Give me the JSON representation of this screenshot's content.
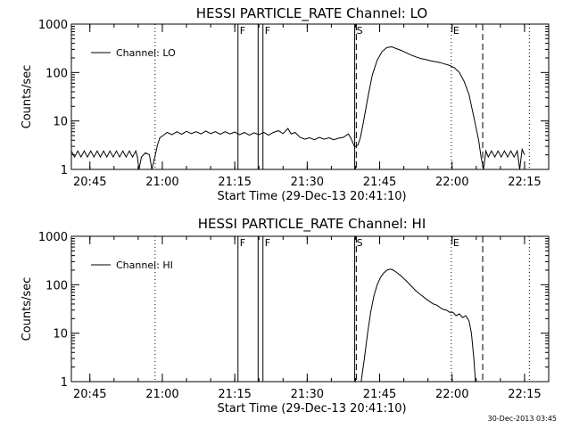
{
  "footer": {
    "timestamp": "30-Dec-2013 03:45"
  },
  "chart_data": [
    {
      "type": "line",
      "title": "HESSI PARTICLE_RATE Channel: LO",
      "xlabel": "Start Time (29-Dec-13 20:41:10)",
      "ylabel": "Counts/sec",
      "y_scale": "log",
      "xlim": [
        "20:41:10",
        "22:20:00"
      ],
      "ylim": [
        1,
        1000
      ],
      "x_ticks": [
        "20:45",
        "21:00",
        "21:15",
        "21:30",
        "21:45",
        "22:00",
        "22:15"
      ],
      "y_ticks": [
        "1",
        "10",
        "100",
        "1000"
      ],
      "legend": {
        "position": "top-left",
        "entries": [
          "Channel: LO"
        ]
      },
      "markers": [
        {
          "time": "20:58:30",
          "style": "dotted",
          "label": ""
        },
        {
          "time": "21:15:40",
          "style": "solid",
          "label": "F"
        },
        {
          "time": "21:19:50",
          "style": "solid",
          "label": ""
        },
        {
          "time": "21:20:50",
          "style": "solid",
          "label": "F"
        },
        {
          "time": "21:39:50",
          "style": "solid",
          "label": "S"
        },
        {
          "time": "21:40:10",
          "style": "dashed",
          "label": ""
        },
        {
          "time": "21:59:50",
          "style": "dotted",
          "label": "E"
        },
        {
          "time": "22:06:20",
          "style": "dashed",
          "label": ""
        },
        {
          "time": "22:16:00",
          "style": "dotted",
          "label": ""
        }
      ],
      "series": [
        {
          "name": "Channel: LO",
          "points": [
            [
              "20:41:10",
              2.4
            ],
            [
              "20:41:50",
              1.8
            ],
            [
              "20:42:30",
              2.4
            ],
            [
              "20:43:10",
              1.8
            ],
            [
              "20:43:50",
              2.4
            ],
            [
              "20:44:30",
              1.8
            ],
            [
              "20:45:10",
              2.4
            ],
            [
              "20:45:50",
              1.8
            ],
            [
              "20:46:30",
              2.4
            ],
            [
              "20:47:10",
              1.8
            ],
            [
              "20:47:50",
              2.4
            ],
            [
              "20:48:30",
              1.8
            ],
            [
              "20:49:10",
              2.4
            ],
            [
              "20:49:50",
              1.8
            ],
            [
              "20:50:30",
              2.4
            ],
            [
              "20:51:10",
              1.8
            ],
            [
              "20:51:50",
              2.4
            ],
            [
              "20:52:30",
              1.8
            ],
            [
              "20:53:10",
              2.4
            ],
            [
              "20:53:50",
              1.8
            ],
            [
              "20:54:30",
              2.4
            ],
            [
              "20:54:50",
              1.8
            ],
            [
              "20:55:10",
              1.0
            ],
            [
              "20:55:40",
              1.8
            ],
            [
              "20:56:30",
              2.2
            ],
            [
              "20:57:20",
              2.0
            ],
            [
              "20:57:50",
              1.0
            ],
            [
              "20:58:30",
              1.9
            ],
            [
              "20:59:00",
              3.2
            ],
            [
              "20:59:30",
              4.5
            ],
            [
              "21:00:10",
              5.0
            ],
            [
              "21:01:00",
              5.8
            ],
            [
              "21:02:00",
              5.2
            ],
            [
              "21:03:00",
              6.0
            ],
            [
              "21:04:00",
              5.3
            ],
            [
              "21:05:00",
              6.1
            ],
            [
              "21:06:00",
              5.5
            ],
            [
              "21:07:00",
              6.0
            ],
            [
              "21:08:00",
              5.4
            ],
            [
              "21:09:00",
              6.2
            ],
            [
              "21:10:00",
              5.5
            ],
            [
              "21:11:00",
              6.0
            ],
            [
              "21:12:00",
              5.3
            ],
            [
              "21:13:00",
              6.0
            ],
            [
              "21:14:00",
              5.4
            ],
            [
              "21:15:00",
              5.9
            ],
            [
              "21:16:00",
              5.2
            ],
            [
              "21:17:00",
              5.8
            ],
            [
              "21:18:00",
              5.1
            ],
            [
              "21:19:00",
              5.7
            ],
            [
              "21:20:00",
              5.2
            ],
            [
              "21:21:00",
              5.8
            ],
            [
              "21:22:00",
              5.1
            ],
            [
              "21:23:00",
              5.8
            ],
            [
              "21:24:00",
              6.3
            ],
            [
              "21:25:00",
              5.5
            ],
            [
              "21:26:00",
              7.0
            ],
            [
              "21:26:40",
              5.4
            ],
            [
              "21:27:30",
              5.8
            ],
            [
              "21:28:30",
              4.6
            ],
            [
              "21:29:30",
              4.2
            ],
            [
              "21:30:30",
              4.5
            ],
            [
              "21:31:30",
              4.1
            ],
            [
              "21:32:30",
              4.6
            ],
            [
              "21:33:30",
              4.2
            ],
            [
              "21:34:30",
              4.5
            ],
            [
              "21:35:30",
              4.1
            ],
            [
              "21:36:30",
              4.4
            ],
            [
              "21:37:30",
              4.6
            ],
            [
              "21:38:30",
              5.4
            ],
            [
              "21:39:00",
              4.5
            ],
            [
              "21:39:50",
              2.9
            ],
            [
              "21:40:30",
              3.2
            ],
            [
              "21:41:00",
              4.5
            ],
            [
              "21:41:30",
              8.0
            ],
            [
              "21:42:00",
              15
            ],
            [
              "21:42:40",
              35
            ],
            [
              "21:43:30",
              90
            ],
            [
              "21:44:30",
              180
            ],
            [
              "21:45:30",
              270
            ],
            [
              "21:46:30",
              330
            ],
            [
              "21:47:30",
              340
            ],
            [
              "21:48:30",
              310
            ],
            [
              "21:49:30",
              285
            ],
            [
              "21:50:30",
              255
            ],
            [
              "21:51:30",
              230
            ],
            [
              "21:52:30",
              210
            ],
            [
              "21:53:30",
              195
            ],
            [
              "21:54:30",
              185
            ],
            [
              "21:55:30",
              175
            ],
            [
              "21:56:30",
              168
            ],
            [
              "21:57:30",
              160
            ],
            [
              "21:58:30",
              150
            ],
            [
              "21:59:30",
              140
            ],
            [
              "22:00:30",
              125
            ],
            [
              "22:01:30",
              100
            ],
            [
              "22:02:30",
              65
            ],
            [
              "22:03:30",
              35
            ],
            [
              "22:04:30",
              12
            ],
            [
              "22:05:30",
              4.0
            ],
            [
              "22:06:00",
              1.8
            ],
            [
              "22:06:30",
              1.0
            ],
            [
              "22:07:00",
              2.4
            ],
            [
              "22:07:30",
              1.8
            ],
            [
              "22:08:10",
              2.4
            ],
            [
              "22:08:50",
              1.8
            ],
            [
              "22:09:30",
              2.4
            ],
            [
              "22:10:10",
              1.8
            ],
            [
              "22:10:50",
              2.4
            ],
            [
              "22:11:30",
              1.8
            ],
            [
              "22:12:10",
              2.4
            ],
            [
              "22:12:50",
              1.8
            ],
            [
              "22:13:30",
              2.4
            ],
            [
              "22:14:00",
              1.0
            ],
            [
              "22:14:30",
              2.6
            ],
            [
              "22:15:00",
              2.0
            ]
          ]
        }
      ]
    },
    {
      "type": "line",
      "title": "HESSI PARTICLE_RATE Channel: HI",
      "xlabel": "Start Time (29-Dec-13 20:41:10)",
      "ylabel": "Counts/sec",
      "y_scale": "log",
      "xlim": [
        "20:41:10",
        "22:20:00"
      ],
      "ylim": [
        1,
        1000
      ],
      "x_ticks": [
        "20:45",
        "21:00",
        "21:15",
        "21:30",
        "21:45",
        "22:00",
        "22:15"
      ],
      "y_ticks": [
        "1",
        "10",
        "100",
        "1000"
      ],
      "legend": {
        "position": "top-left",
        "entries": [
          "Channel: HI"
        ]
      },
      "markers": [
        {
          "time": "20:58:30",
          "style": "dotted",
          "label": ""
        },
        {
          "time": "21:15:40",
          "style": "solid",
          "label": "F"
        },
        {
          "time": "21:19:50",
          "style": "solid",
          "label": ""
        },
        {
          "time": "21:20:50",
          "style": "solid",
          "label": "F"
        },
        {
          "time": "21:39:50",
          "style": "solid",
          "label": "S"
        },
        {
          "time": "21:40:10",
          "style": "dashed",
          "label": ""
        },
        {
          "time": "21:59:50",
          "style": "dotted",
          "label": "E"
        },
        {
          "time": "22:06:20",
          "style": "dashed",
          "label": ""
        },
        {
          "time": "22:16:00",
          "style": "dotted",
          "label": ""
        }
      ],
      "series": [
        {
          "name": "Channel: HI",
          "points": [
            [
              "21:41:10",
              1.0
            ],
            [
              "21:41:50",
              3.0
            ],
            [
              "21:42:30",
              10
            ],
            [
              "21:43:10",
              28
            ],
            [
              "21:43:50",
              60
            ],
            [
              "21:44:30",
              100
            ],
            [
              "21:45:10",
              140
            ],
            [
              "21:45:50",
              175
            ],
            [
              "21:46:30",
              200
            ],
            [
              "21:47:10",
              210
            ],
            [
              "21:47:50",
              200
            ],
            [
              "21:48:30",
              180
            ],
            [
              "21:49:30",
              150
            ],
            [
              "21:50:30",
              120
            ],
            [
              "21:51:30",
              95
            ],
            [
              "21:52:30",
              75
            ],
            [
              "21:53:30",
              62
            ],
            [
              "21:54:30",
              52
            ],
            [
              "21:55:30",
              44
            ],
            [
              "21:56:10",
              40
            ],
            [
              "21:56:50",
              38
            ],
            [
              "21:57:30",
              34
            ],
            [
              "21:58:10",
              31
            ],
            [
              "21:58:50",
              30
            ],
            [
              "21:59:30",
              27
            ],
            [
              "22:00:10",
              27
            ],
            [
              "22:00:50",
              23
            ],
            [
              "22:01:30",
              25
            ],
            [
              "22:02:10",
              21
            ],
            [
              "22:02:50",
              23
            ],
            [
              "22:03:30",
              18
            ],
            [
              "22:04:00",
              10
            ],
            [
              "22:04:30",
              3.0
            ],
            [
              "22:04:50",
              1.0
            ]
          ]
        }
      ]
    }
  ]
}
